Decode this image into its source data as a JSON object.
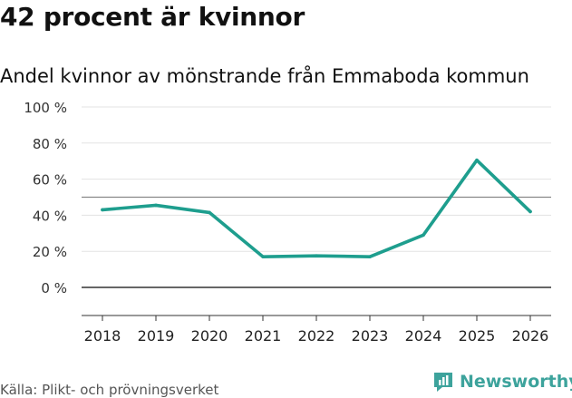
{
  "title": "42 procent är kvinnor",
  "subtitle": "Andel kvinnor av mönstrande från Emmaboda kommun",
  "source": "Källa: Plikt- och prövningsverket",
  "brand": {
    "name": "Newsworthy",
    "color": "#3da39c"
  },
  "chart_data": {
    "type": "line",
    "categories": [
      "2018",
      "2019",
      "2020",
      "2021",
      "2022",
      "2023",
      "2024",
      "2025",
      "2026"
    ],
    "series": [
      {
        "name": "Andel kvinnor",
        "values": [
          43,
          45.5,
          41.5,
          17,
          17.5,
          17,
          29,
          70.5,
          42
        ],
        "color": "#1e9e8e"
      }
    ],
    "reference_line": {
      "value": 50,
      "color": "#888888"
    },
    "y_ticks": [
      0,
      20,
      40,
      60,
      80,
      100
    ],
    "y_tick_labels": [
      "0 %",
      "20 %",
      "40 %",
      "60 %",
      "80 %",
      "100 %"
    ],
    "ylim": [
      -15,
      100
    ],
    "grid": true,
    "title": "42 procent är kvinnor",
    "xlabel": "",
    "ylabel": ""
  }
}
